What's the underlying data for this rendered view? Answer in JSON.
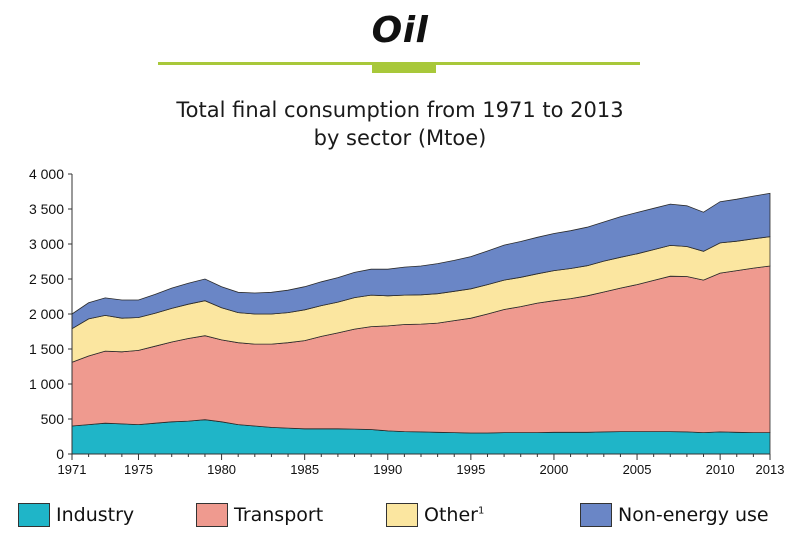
{
  "header": {
    "title": "Oil",
    "accent_color": "#a8c83a"
  },
  "chart_data": {
    "type": "area",
    "stacked": true,
    "title": "Total final consumption from 1971 to 2013",
    "subtitle": "by sector (Mtoe)",
    "xlabel": "",
    "ylabel": "",
    "ylim": [
      0,
      4000
    ],
    "xlim": [
      1971,
      2013
    ],
    "yticks": [
      0,
      500,
      1000,
      1500,
      2000,
      2500,
      3000,
      3500,
      4000
    ],
    "ytick_labels": [
      "0",
      "500",
      "1 000",
      "1 500",
      "2 000",
      "2 500",
      "3 000",
      "3 500",
      "4 000"
    ],
    "xticks": [
      1971,
      1975,
      1980,
      1985,
      1990,
      1995,
      2000,
      2005,
      2010,
      2013
    ],
    "xtick_labels": [
      "1971",
      "1975",
      "1980",
      "1985",
      "1990",
      "1995",
      "2000",
      "2005",
      "2010",
      "2013"
    ],
    "legend_position": "bottom",
    "x": [
      1971,
      1972,
      1973,
      1974,
      1975,
      1976,
      1977,
      1978,
      1979,
      1980,
      1981,
      1982,
      1983,
      1984,
      1985,
      1986,
      1987,
      1988,
      1989,
      1990,
      1991,
      1992,
      1993,
      1994,
      1995,
      1996,
      1997,
      1998,
      1999,
      2000,
      2001,
      2002,
      2003,
      2004,
      2005,
      2006,
      2007,
      2008,
      2009,
      2010,
      2011,
      2012,
      2013
    ],
    "series": [
      {
        "name": "Industry",
        "color": "#1fb5c8",
        "values": [
          400,
          420,
          440,
          430,
          420,
          440,
          460,
          470,
          490,
          460,
          420,
          400,
          380,
          370,
          360,
          360,
          360,
          355,
          350,
          330,
          320,
          315,
          310,
          305,
          300,
          300,
          305,
          305,
          305,
          310,
          310,
          310,
          315,
          320,
          320,
          320,
          320,
          315,
          305,
          315,
          310,
          305,
          305
        ]
      },
      {
        "name": "Transport",
        "color": "#ef9a8f",
        "values": [
          910,
          980,
          1030,
          1030,
          1060,
          1100,
          1140,
          1180,
          1200,
          1170,
          1170,
          1170,
          1190,
          1220,
          1260,
          1320,
          1370,
          1430,
          1470,
          1500,
          1530,
          1540,
          1560,
          1600,
          1640,
          1700,
          1760,
          1800,
          1850,
          1880,
          1910,
          1950,
          2000,
          2050,
          2100,
          2160,
          2220,
          2220,
          2180,
          2270,
          2310,
          2350,
          2380
        ]
      },
      {
        "name": "Other",
        "label_suffix": "1",
        "color": "#fbe6a0",
        "values": [
          480,
          530,
          510,
          480,
          470,
          470,
          480,
          490,
          500,
          460,
          430,
          430,
          430,
          430,
          440,
          440,
          440,
          450,
          450,
          430,
          420,
          420,
          420,
          420,
          420,
          420,
          420,
          420,
          420,
          430,
          430,
          430,
          440,
          440,
          440,
          440,
          440,
          430,
          410,
          430,
          420,
          420,
          420
        ]
      },
      {
        "name": "Non-energy use",
        "color": "#6a86c6",
        "values": [
          210,
          230,
          250,
          260,
          250,
          270,
          290,
          300,
          310,
          300,
          290,
          300,
          310,
          320,
          330,
          340,
          350,
          360,
          370,
          380,
          400,
          410,
          430,
          440,
          460,
          480,
          500,
          510,
          520,
          530,
          540,
          550,
          560,
          580,
          590,
          590,
          590,
          580,
          560,
          590,
          600,
          610,
          620
        ]
      }
    ]
  },
  "legend": {
    "items": [
      {
        "label": "Industry",
        "color": "#1fb5c8"
      },
      {
        "label": "Transport",
        "color": "#ef9a8f"
      },
      {
        "label": "Other",
        "sup": "1",
        "color": "#fbe6a0"
      },
      {
        "label": "Non-energy use",
        "color": "#6a86c6"
      }
    ]
  }
}
